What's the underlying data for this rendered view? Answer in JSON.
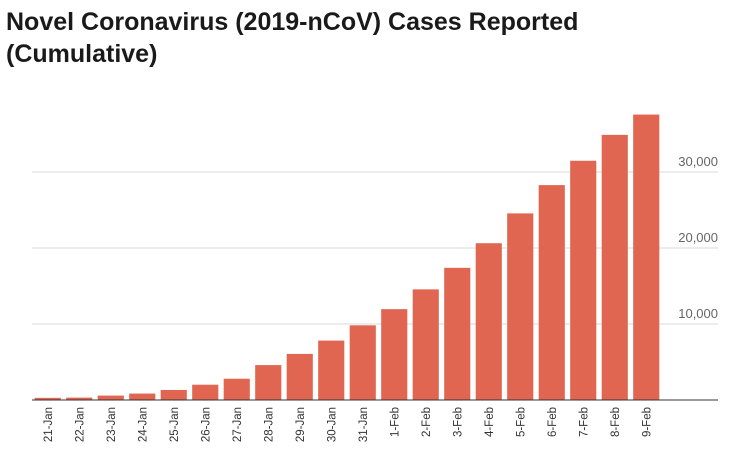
{
  "chart_data": {
    "type": "bar",
    "title": "Novel Coronavirus (2019-nCoV) Cases Reported (Cumulative)",
    "categories": [
      "21-Jan",
      "22-Jan",
      "23-Jan",
      "24-Jan",
      "25-Jan",
      "26-Jan",
      "27-Jan",
      "28-Jan",
      "29-Jan",
      "30-Jan",
      "31-Jan",
      "1-Feb",
      "2-Feb",
      "3-Feb",
      "4-Feb",
      "5-Feb",
      "6-Feb",
      "7-Feb",
      "8-Feb",
      "9-Feb"
    ],
    "values": [
      282,
      314,
      581,
      846,
      1320,
      2014,
      2798,
      4593,
      6065,
      7818,
      9826,
      11953,
      14557,
      17391,
      20630,
      24554,
      28276,
      31481,
      34886,
      37558
    ],
    "yticks": [
      10000,
      20000,
      30000
    ],
    "ytick_labels": [
      "10,000",
      "20,000",
      "30,000"
    ],
    "ylim": [
      0,
      40000
    ],
    "y_axis_side": "right",
    "grid": true,
    "bar_color": "#e06651",
    "xlabel": "",
    "ylabel": ""
  }
}
